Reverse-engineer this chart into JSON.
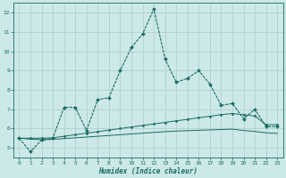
{
  "xlabel": "Humidex (Indice chaleur)",
  "background_color": "#cce8e8",
  "grid_color": "#aacccc",
  "line_color": "#1a6b60",
  "x_values": [
    0,
    1,
    2,
    3,
    4,
    5,
    6,
    7,
    8,
    9,
    10,
    11,
    12,
    13,
    14,
    15,
    16,
    17,
    18,
    19,
    20,
    21,
    22,
    23
  ],
  "y_main": [
    5.5,
    4.8,
    5.4,
    5.5,
    7.1,
    7.1,
    5.9,
    7.5,
    7.6,
    9.0,
    10.2,
    10.9,
    12.2,
    9.6,
    8.4,
    8.6,
    9.0,
    8.3,
    7.2,
    7.3,
    6.5,
    7.0,
    6.1,
    6.1
  ],
  "y_upper": [
    5.5,
    5.5,
    5.5,
    5.52,
    5.6,
    5.68,
    5.76,
    5.84,
    5.92,
    6.0,
    6.08,
    6.16,
    6.24,
    6.32,
    6.4,
    6.48,
    6.56,
    6.64,
    6.72,
    6.78,
    6.72,
    6.65,
    6.2,
    6.2
  ],
  "y_lower": [
    5.5,
    5.45,
    5.42,
    5.44,
    5.48,
    5.52,
    5.56,
    5.6,
    5.64,
    5.68,
    5.72,
    5.76,
    5.8,
    5.84,
    5.87,
    5.89,
    5.91,
    5.93,
    5.95,
    5.97,
    5.9,
    5.85,
    5.78,
    5.75
  ],
  "ylim": [
    4.5,
    12.5
  ],
  "yticks": [
    5,
    6,
    7,
    8,
    9,
    10,
    11,
    12
  ],
  "xlim": [
    -0.5,
    23.5
  ],
  "xticks": [
    0,
    1,
    2,
    3,
    4,
    5,
    6,
    7,
    8,
    9,
    10,
    11,
    12,
    13,
    14,
    15,
    16,
    17,
    18,
    19,
    20,
    21,
    22,
    23
  ],
  "fig_width": 3.2,
  "fig_height": 2.0,
  "dpi": 100
}
